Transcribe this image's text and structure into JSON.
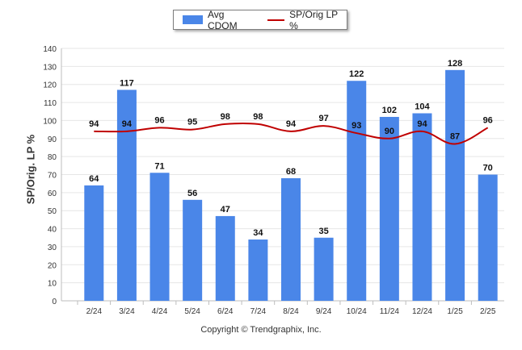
{
  "chart_data": {
    "type": "bar",
    "categories": [
      "2/24",
      "3/24",
      "4/24",
      "5/24",
      "6/24",
      "7/24",
      "8/24",
      "9/24",
      "10/24",
      "11/24",
      "12/24",
      "1/25",
      "2/25"
    ],
    "series": [
      {
        "name": "Avg CDOM",
        "type": "bar",
        "color": "#4a86e8",
        "values": [
          64,
          117,
          71,
          56,
          47,
          34,
          68,
          35,
          122,
          102,
          104,
          128,
          70
        ]
      },
      {
        "name": "SP/Orig LP %",
        "type": "line",
        "color": "#c00000",
        "values": [
          94,
          94,
          96,
          95,
          98,
          98,
          94,
          97,
          93,
          90,
          94,
          87,
          96
        ]
      }
    ],
    "ylabel": "SP/Orig. LP %",
    "ylim": [
      0,
      140
    ],
    "yticks": [
      0,
      10,
      20,
      30,
      40,
      50,
      60,
      70,
      80,
      90,
      100,
      110,
      120,
      130,
      140
    ],
    "grid": true,
    "legend": "top-center"
  },
  "legend": {
    "bar_label": "Avg CDOM",
    "line_label": "SP/Orig LP %"
  },
  "footer": {
    "copyright": "Copyright © Trendgraphix, Inc."
  }
}
